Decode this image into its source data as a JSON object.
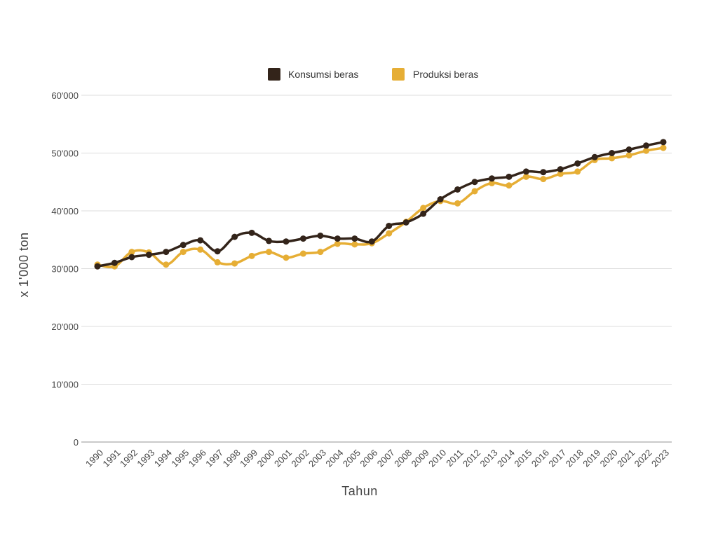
{
  "chart_data": {
    "type": "line",
    "title": "",
    "xlabel": "Tahun",
    "ylabel": "x 1'000 ton",
    "ylim": [
      0,
      60000
    ],
    "yticks": [
      0,
      10000,
      20000,
      30000,
      40000,
      50000,
      60000
    ],
    "ytick_labels": [
      "0",
      "10'000",
      "20'000",
      "30'000",
      "40'000",
      "50'000",
      "60'000"
    ],
    "grid": true,
    "legend_position": "top",
    "categories": [
      "1990",
      "1991",
      "1992",
      "1993",
      "1994",
      "1995",
      "1996",
      "1997",
      "1998",
      "1999",
      "2000",
      "2001",
      "2002",
      "2003",
      "2004",
      "2005",
      "2006",
      "2007",
      "2008",
      "2009",
      "2010",
      "2011",
      "2012",
      "2013",
      "2014",
      "2015",
      "2016",
      "2017",
      "2018",
      "2019",
      "2020",
      "2021",
      "2022",
      "2023"
    ],
    "series": [
      {
        "name": "Konsumsi beras",
        "color": "#33241a",
        "values": [
          30400,
          31000,
          32000,
          32400,
          32900,
          34100,
          34900,
          33000,
          35500,
          36200,
          34800,
          34700,
          35200,
          35700,
          35200,
          35200,
          34700,
          37400,
          38000,
          39500,
          42000,
          43700,
          45000,
          45600,
          45900,
          46800,
          46700,
          47200,
          48200,
          49300,
          50000,
          50600,
          51300,
          51900
        ]
      },
      {
        "name": "Produksi beras",
        "color": "#e6ae35",
        "values": [
          30700,
          30400,
          32900,
          32800,
          30700,
          32900,
          33300,
          31100,
          30900,
          32200,
          32900,
          31900,
          32600,
          32900,
          34300,
          34200,
          34400,
          36100,
          38100,
          40500,
          41700,
          41300,
          43400,
          44800,
          44400,
          45900,
          45500,
          46400,
          46800,
          48800,
          49100,
          49600,
          50400,
          50900
        ]
      }
    ]
  }
}
